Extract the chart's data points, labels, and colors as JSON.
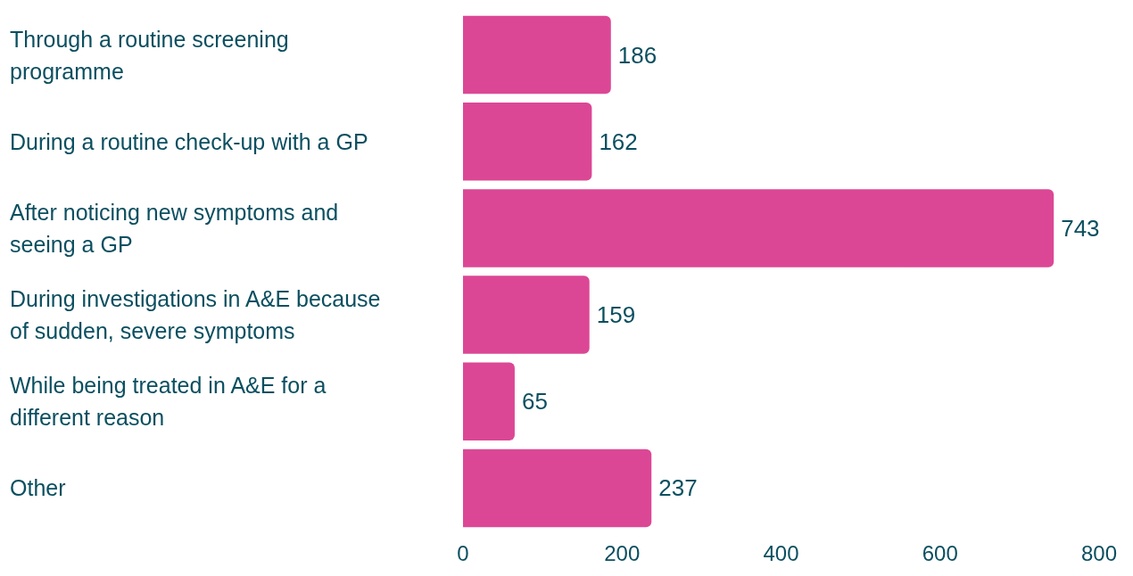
{
  "chart_data": {
    "type": "bar",
    "orientation": "horizontal",
    "categories": [
      "Through a routine screening programme",
      "During a routine check-up with a GP",
      "After noticing new symptoms and seeing a GP",
      "During investigations in A&E because of sudden, severe symptoms",
      "While being treated in A&E for a different reason",
      "Other"
    ],
    "values": [
      186,
      162,
      743,
      159,
      65,
      237
    ],
    "color": "#dc4795",
    "xlim": [
      0,
      800
    ],
    "xticks": [
      0,
      200,
      400,
      600,
      800
    ],
    "data_labels": true,
    "grid": false
  }
}
